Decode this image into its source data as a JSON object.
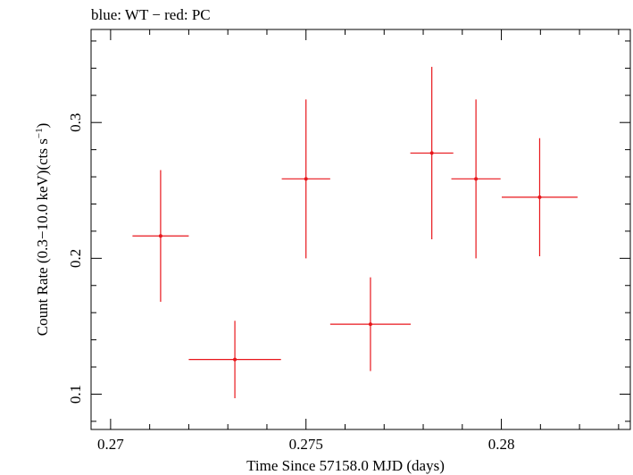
{
  "chart_data": {
    "type": "scatter",
    "title": "blue: WT − red: PC",
    "xlabel": "Time Since 57158.0 MJD (days)",
    "ylabel": "Count Rate (0.3−10.0 keV)(cts s",
    "ylabel_sup": "−1",
    "ylabel_end": ")",
    "xlim": [
      0.2695,
      0.2833
    ],
    "ylim": [
      0.074,
      0.3685
    ],
    "x_ticks": [
      0.27,
      0.275,
      0.28
    ],
    "x_tick_labels": [
      "0.27",
      "0.275",
      "0.28"
    ],
    "y_ticks": [
      0.1,
      0.2,
      0.3
    ],
    "y_tick_labels": [
      "0.1",
      "0.2",
      "0.3"
    ],
    "grid": false,
    "series": [
      {
        "color": "#e8161b",
        "points": [
          {
            "x": 0.27128,
            "xerr": 0.00072,
            "y": 0.2165,
            "yerr": 0.0485
          },
          {
            "x": 0.27318,
            "xerr": 0.00118,
            "y": 0.1255,
            "yerr": 0.0285
          },
          {
            "x": 0.275,
            "xerr": 0.00062,
            "y": 0.2585,
            "yerr": 0.0585
          },
          {
            "x": 0.27665,
            "xerr": 0.00103,
            "y": 0.1515,
            "yerr": 0.0345
          },
          {
            "x": 0.27822,
            "xerr": 0.00055,
            "y": 0.2775,
            "yerr": 0.0635
          },
          {
            "x": 0.27935,
            "xerr": 0.00063,
            "y": 0.2585,
            "yerr": 0.0585
          },
          {
            "x": 0.28098,
            "xerr": 0.00097,
            "y": 0.245,
            "yerr": 0.0435
          }
        ]
      }
    ]
  }
}
